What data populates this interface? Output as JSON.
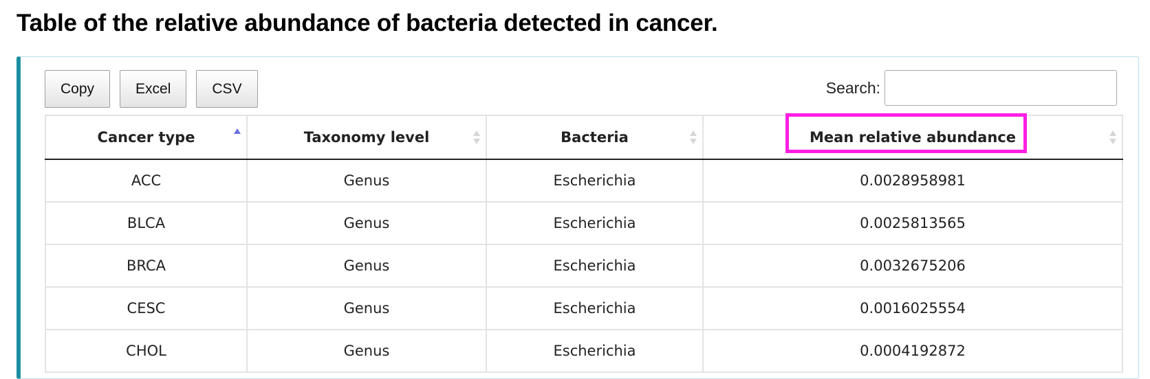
{
  "title": "Table of the relative abundance of bacteria detected in cancer.",
  "toolbar": {
    "copy_label": "Copy",
    "excel_label": "Excel",
    "csv_label": "CSV"
  },
  "search": {
    "label": "Search:",
    "value": "",
    "placeholder": ""
  },
  "table": {
    "columns": [
      "Cancer type",
      "Taxonomy level",
      "Bacteria",
      "Mean relative abundance"
    ],
    "sorted_column": "Cancer type",
    "sort_direction": "ascending",
    "rows": [
      [
        "ACC",
        "Genus",
        "Escherichia",
        "0.0028958981"
      ],
      [
        "BLCA",
        "Genus",
        "Escherichia",
        "0.0025813565"
      ],
      [
        "BRCA",
        "Genus",
        "Escherichia",
        "0.0032675206"
      ],
      [
        "CESC",
        "Genus",
        "Escherichia",
        "0.0016025554"
      ],
      [
        "CHOL",
        "Genus",
        "Escherichia",
        "0.0004192872"
      ]
    ]
  },
  "highlight_color": "#ff1ee3",
  "accent_color": "#1b8fa0",
  "sort_active_color": "#6a6fe0"
}
